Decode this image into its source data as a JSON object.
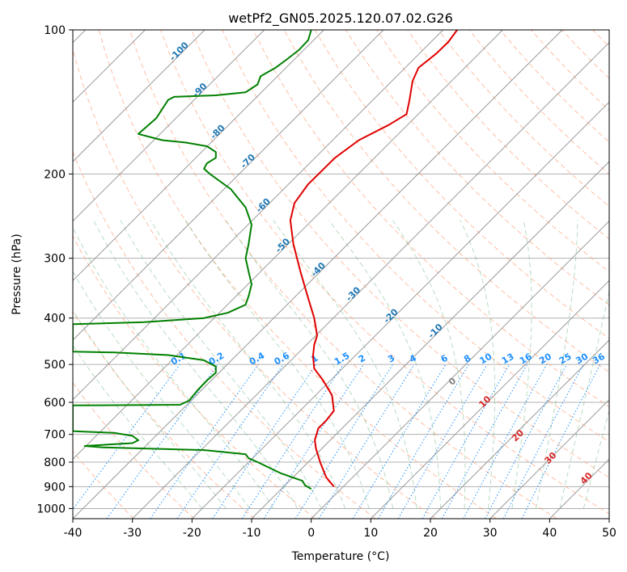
{
  "chart_data": {
    "type": "line",
    "title": "wetPf2_GN05.2025.120.07.02.G26",
    "xlabel": "Temperature (°C)",
    "ylabel": "Pressure (hPa)",
    "xlim": [
      -40,
      50
    ],
    "ylim": [
      1050,
      100
    ],
    "y_scale": "log",
    "grid": true,
    "x_ticks": [
      -40,
      -30,
      -20,
      -10,
      0,
      10,
      20,
      30,
      40,
      50
    ],
    "y_ticks": [
      100,
      200,
      300,
      400,
      500,
      600,
      700,
      800,
      900,
      1000
    ],
    "colors": {
      "temperature": "#e00000",
      "dewpoint": "#008000",
      "isotherm_labels": "#1f77b4",
      "mixing_ratio": "#1e90ff",
      "dry_adiabat_labels": "#d62728",
      "moist_adiabat_label": "#808080"
    },
    "series": [
      {
        "role": "temperature",
        "points": [
          [
            3.8,
            900
          ],
          [
            2.5,
            860
          ],
          [
            1.5,
            800
          ],
          [
            0.8,
            750
          ],
          [
            0.6,
            720
          ],
          [
            1.2,
            680
          ],
          [
            2.5,
            655
          ],
          [
            3.8,
            625
          ],
          [
            3.5,
            580
          ],
          [
            2.0,
            540
          ],
          [
            0.5,
            510
          ],
          [
            0.3,
            480
          ],
          [
            0.5,
            455
          ],
          [
            1.0,
            435
          ],
          [
            0.5,
            400
          ],
          [
            -0.6,
            360
          ],
          [
            -1.8,
            320
          ],
          [
            -3.0,
            280
          ],
          [
            -3.5,
            250
          ],
          [
            -2.8,
            230
          ],
          [
            -0.5,
            210
          ],
          [
            4.0,
            185
          ],
          [
            8.0,
            170
          ],
          [
            13.0,
            158
          ],
          [
            16.0,
            150
          ],
          [
            16.5,
            140
          ],
          [
            17.0,
            128
          ],
          [
            18.0,
            120
          ],
          [
            21.0,
            112
          ],
          [
            23.0,
            106
          ],
          [
            24.5,
            100
          ]
        ]
      },
      {
        "role": "dewpoint",
        "points": [
          [
            0.0,
            910
          ],
          [
            -1.0,
            895
          ],
          [
            -1.5,
            875
          ],
          [
            -5.0,
            845
          ],
          [
            -9.0,
            800
          ],
          [
            -10.5,
            785
          ],
          [
            -11.0,
            770
          ],
          [
            -18.0,
            755
          ],
          [
            -35.0,
            745
          ],
          [
            -38.0,
            740
          ],
          [
            -30.0,
            730
          ],
          [
            -29.0,
            720
          ],
          [
            -30.0,
            705
          ],
          [
            -33.0,
            695
          ],
          [
            -39.0,
            690
          ],
          [
            -40.0,
            689
          ],
          [
            -40.0,
            609
          ],
          [
            -22.0,
            607
          ],
          [
            -20.5,
            595
          ],
          [
            -19.0,
            565
          ],
          [
            -17.5,
            540
          ],
          [
            -16.0,
            520
          ],
          [
            -16.0,
            505
          ],
          [
            -18.0,
            490
          ],
          [
            -24.0,
            478
          ],
          [
            -33.0,
            472
          ],
          [
            -40.0,
            470
          ],
          [
            -40.0,
            412
          ],
          [
            -28.0,
            408
          ],
          [
            -18.0,
            400
          ],
          [
            -14.0,
            390
          ],
          [
            -11.0,
            375
          ],
          [
            -10.5,
            360
          ],
          [
            -10.0,
            340
          ],
          [
            -10.5,
            320
          ],
          [
            -11.0,
            300
          ],
          [
            -10.5,
            280
          ],
          [
            -10.0,
            255
          ],
          [
            -11.0,
            235
          ],
          [
            -13.5,
            215
          ],
          [
            -17.0,
            200
          ],
          [
            -18.0,
            195
          ],
          [
            -17.5,
            190
          ],
          [
            -16.0,
            185
          ],
          [
            -16.0,
            180
          ],
          [
            -17.5,
            175
          ],
          [
            -21.0,
            172
          ],
          [
            -25.0,
            170
          ],
          [
            -29.0,
            165
          ],
          [
            -26.0,
            153
          ],
          [
            -24.0,
            140
          ],
          [
            -23.0,
            138
          ],
          [
            -16.0,
            137
          ],
          [
            -11.0,
            135
          ],
          [
            -9.0,
            130
          ],
          [
            -8.5,
            125
          ],
          [
            -6.0,
            120
          ],
          [
            -4.0,
            115
          ],
          [
            -2.0,
            110
          ],
          [
            -0.5,
            105
          ],
          [
            0.0,
            100
          ]
        ]
      }
    ],
    "isotherm_labels": [
      "-100",
      "-90",
      "-80",
      "-70",
      "-60",
      "-50",
      "-40",
      "-30",
      "-20",
      "-10"
    ],
    "mixing_ratio_labels": [
      "0.1",
      "0.2",
      "0.4",
      "0.6",
      "1",
      "1.5",
      "2",
      "3",
      "4",
      "6",
      "8",
      "10",
      "13",
      "16",
      "20",
      "25",
      "30",
      "36"
    ],
    "mixing_ratio_values": [
      0.1,
      0.2,
      0.4,
      0.6,
      1,
      1.5,
      2,
      3,
      4,
      6,
      8,
      10,
      13,
      16,
      20,
      25,
      30,
      36
    ],
    "dry_adiabat_labels": [
      "10",
      "20",
      "30",
      "40"
    ],
    "moist_adiabat_labels": [
      "0"
    ]
  }
}
